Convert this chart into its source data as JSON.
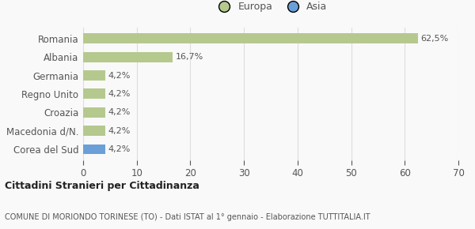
{
  "categories": [
    "Romania",
    "Albania",
    "Germania",
    "Regno Unito",
    "Croazia",
    "Macedonia d/N.",
    "Corea del Sud"
  ],
  "values": [
    62.5,
    16.7,
    4.2,
    4.2,
    4.2,
    4.2,
    4.2
  ],
  "bar_colors": [
    "#b5c98e",
    "#b5c98e",
    "#b5c98e",
    "#b5c98e",
    "#b5c98e",
    "#b5c98e",
    "#6a9fd8"
  ],
  "label_texts": [
    "62,5%",
    "16,7%",
    "4,2%",
    "4,2%",
    "4,2%",
    "4,2%",
    "4,2%"
  ],
  "legend_labels": [
    "Europa",
    "Asia"
  ],
  "legend_colors": [
    "#b5c98e",
    "#6a9fd8"
  ],
  "xlim": [
    0,
    70
  ],
  "xticks": [
    0,
    10,
    20,
    30,
    40,
    50,
    60,
    70
  ],
  "title_main": "Cittadini Stranieri per Cittadinanza",
  "title_sub": "COMUNE DI MORIONDO TORINESE (TO) - Dati ISTAT al 1° gennaio - Elaborazione TUTTITALIA.IT",
  "background_color": "#f9f9f9",
  "grid_color": "#dddddd",
  "text_color": "#555555",
  "title_color": "#222222"
}
